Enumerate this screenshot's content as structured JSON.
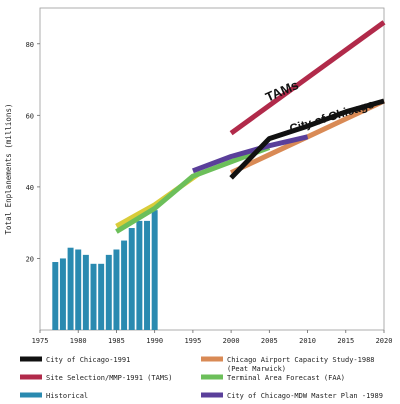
{
  "chart_data": {
    "type": "line",
    "xlim": [
      1975,
      2020
    ],
    "ylim": [
      0,
      90
    ],
    "ylabel": "Total Enplanements (millions)",
    "x_ticks": [
      1975,
      1980,
      1985,
      1990,
      1995,
      2000,
      2005,
      2010,
      2015,
      2020
    ],
    "y_ticks": [
      20,
      40,
      60,
      80
    ],
    "bars": {
      "name": "Historical",
      "color": "#2a8ab0",
      "x": [
        1977,
        1978,
        1979,
        1980,
        1981,
        1982,
        1983,
        1984,
        1985,
        1986,
        1987,
        1988,
        1989,
        1990
      ],
      "values": [
        19,
        20,
        23,
        22.5,
        21,
        18.5,
        18.5,
        21,
        22.5,
        25,
        28.5,
        30.5,
        30.5,
        33.5
      ]
    },
    "series": [
      {
        "name": "City of Chicago-1991",
        "color": "#111111",
        "x": [
          2000,
          2005,
          2010,
          2015,
          2020
        ],
        "values": [
          42.5,
          53.5,
          57,
          61,
          64
        ]
      },
      {
        "name": "Chicago Airport Capacity Study-1988 (Peat Marwick)",
        "color": "#d98a55",
        "x": [
          2000,
          2005,
          2010,
          2015,
          2020
        ],
        "values": [
          44,
          49,
          54,
          59,
          64
        ]
      },
      {
        "name": "Site Selection/MMP-1991 (TAMS)",
        "color": "#b12a4a",
        "x": [
          2000,
          2020
        ],
        "values": [
          55,
          86
        ]
      },
      {
        "name": "Terminal Area Forecast (FAA)",
        "color": "#6cbf5a",
        "x": [
          1985,
          1990,
          1995,
          2000,
          2005
        ],
        "values": [
          27.5,
          34,
          43,
          47,
          51
        ]
      },
      {
        "name": "City of Chicago-MDW Master Plan -1989",
        "color": "#5a3f9a",
        "x": [
          1995,
          2000,
          2005,
          2010
        ],
        "values": [
          44.5,
          48.5,
          51.5,
          54
        ]
      },
      {
        "name": "",
        "color": "#d9cc3a",
        "x": [
          1985,
          1990,
          1996
        ],
        "values": [
          29,
          35,
          44
        ]
      }
    ],
    "annotations": [
      {
        "text": "TAMs"
      },
      {
        "text": "City of Chicago"
      }
    ]
  }
}
